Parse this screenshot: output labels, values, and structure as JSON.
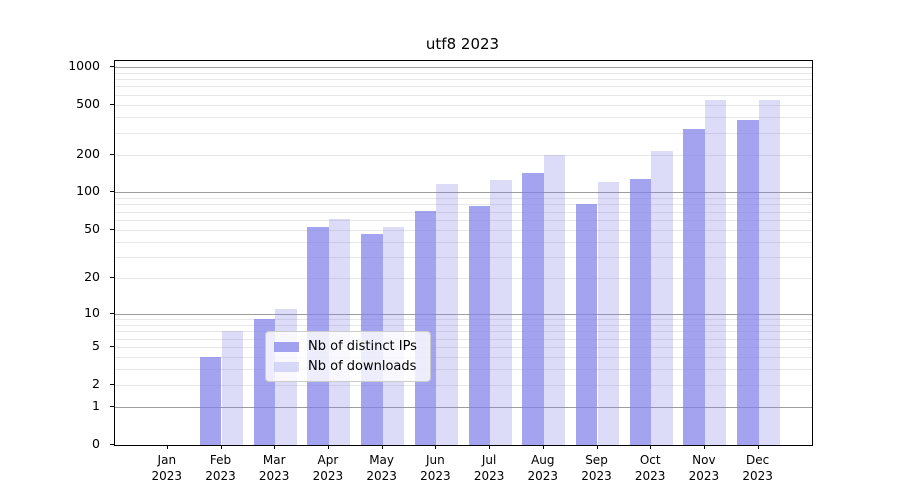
{
  "title": "utf8 2023",
  "year_label": "2023",
  "colors": {
    "bar_distinct_ips": "rgba(128,128,234,0.72)",
    "bar_downloads": "rgba(128,128,234,0.28)",
    "grid_major": "#9d9d9d",
    "grid_minor": "#e7e7e7",
    "axis": "#000000",
    "legend_border": "#cccccc"
  },
  "chart_data": {
    "type": "bar",
    "title": "utf8 2023",
    "xlabel": "",
    "ylabel": "",
    "categories": [
      "Jan",
      "Feb",
      "Mar",
      "Apr",
      "May",
      "Jun",
      "Jul",
      "Aug",
      "Sep",
      "Oct",
      "Nov",
      "Dec"
    ],
    "category_year": "2023",
    "series": [
      {
        "name": "Nb of distinct IPs",
        "values": [
          0,
          4,
          9,
          53,
          46,
          71,
          78,
          143,
          81,
          128,
          318,
          375
        ]
      },
      {
        "name": "Nb of downloads",
        "values": [
          0,
          7,
          11,
          61,
          53,
          117,
          125,
          200,
          121,
          213,
          550,
          541
        ]
      }
    ],
    "yticks": [
      0,
      1,
      2,
      5,
      10,
      20,
      50,
      100,
      200,
      500,
      1000
    ],
    "minor_grid_decades": [
      1,
      10,
      100
    ],
    "major_grid_values": [
      1,
      10,
      100,
      1000
    ],
    "yscale": "log10(1+v)",
    "ylim": [
      0,
      1112
    ],
    "grid": "on",
    "legend_position": "lower center"
  }
}
